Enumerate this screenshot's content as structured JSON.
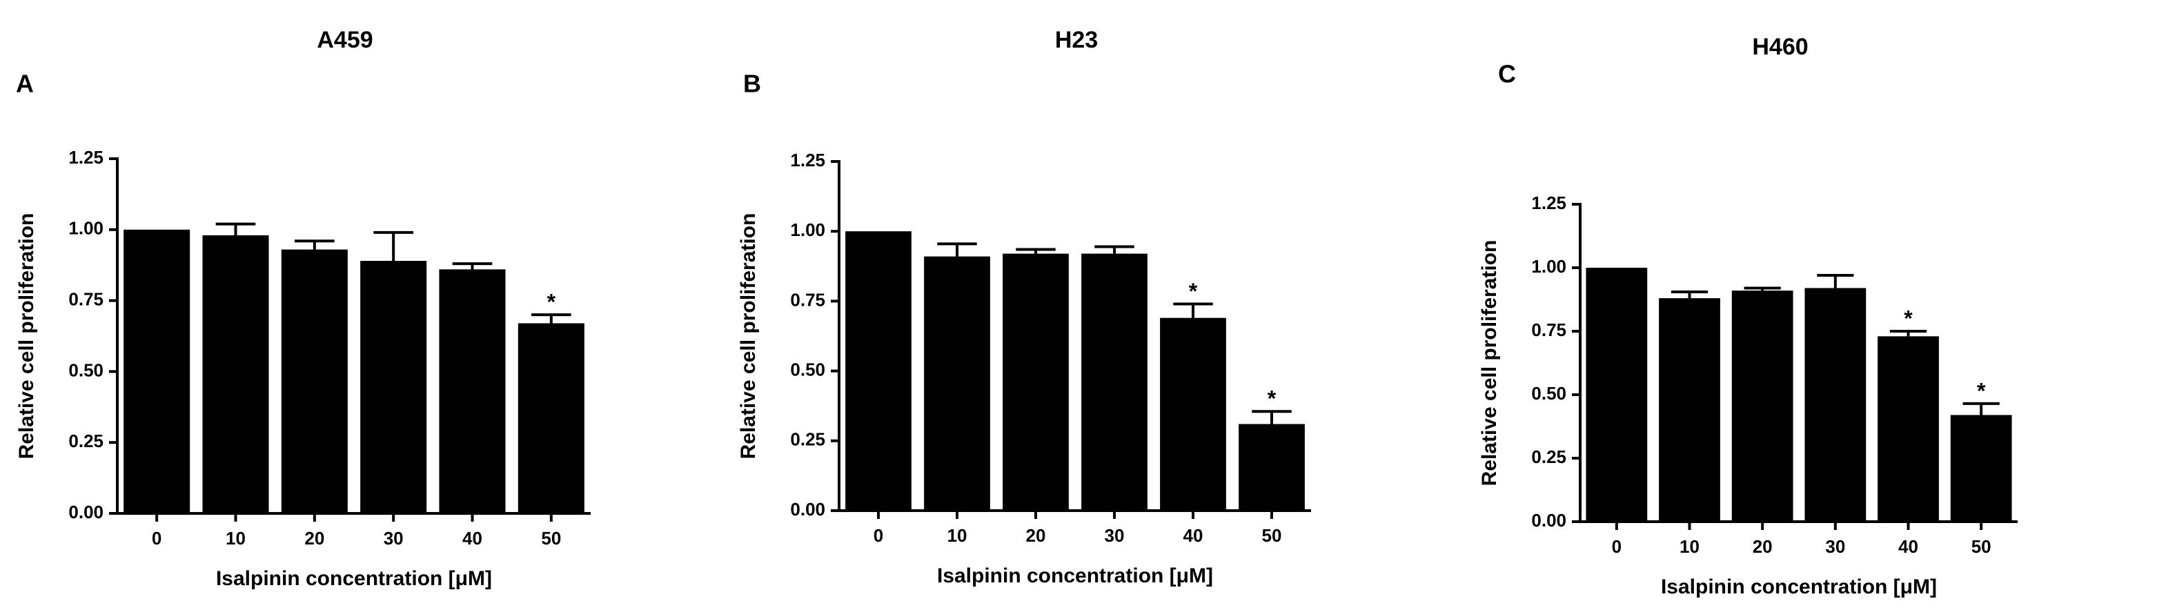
{
  "chart_data": [
    {
      "type": "bar",
      "panel": "A",
      "title": "A459",
      "x_label": "Isalpinin concentration [μM]",
      "y_label": "Relative cell proliferation",
      "categories": [
        "0",
        "10",
        "20",
        "30",
        "40",
        "50"
      ],
      "values": [
        1.0,
        0.98,
        0.93,
        0.89,
        0.86,
        0.67
      ],
      "errors": [
        null,
        0.04,
        0.03,
        0.1,
        0.02,
        0.03
      ],
      "significance": [
        null,
        null,
        null,
        null,
        null,
        "*"
      ],
      "color": "#000000",
      "ylim": [
        0,
        1.25
      ],
      "yticks": [
        {
          "value": 0,
          "label": "0.00"
        },
        {
          "value": 0.25,
          "label": "0.25"
        },
        {
          "value": 0.5,
          "label": "0.50"
        },
        {
          "value": 0.75,
          "label": "0.75"
        },
        {
          "value": 1,
          "label": "1.00"
        },
        {
          "value": 1.25,
          "label": "1.25"
        }
      ]
    },
    {
      "type": "bar",
      "panel": "B",
      "title": "H23",
      "x_label": "Isalpinin concentration [μM]",
      "y_label": "Relative cell proliferation",
      "categories": [
        "0",
        "10",
        "20",
        "30",
        "40",
        "50"
      ],
      "values": [
        1.0,
        0.91,
        0.92,
        0.92,
        0.69,
        0.31
      ],
      "errors": [
        null,
        0.045,
        0.015,
        0.025,
        0.05,
        0.045
      ],
      "significance": [
        null,
        null,
        null,
        null,
        "*",
        "*"
      ],
      "color": "#000000",
      "ylim": [
        0,
        1.25
      ],
      "yticks": [
        {
          "value": 0,
          "label": "0.00"
        },
        {
          "value": 0.25,
          "label": "0.25"
        },
        {
          "value": 0.5,
          "label": "0.50"
        },
        {
          "value": 0.75,
          "label": "0.75"
        },
        {
          "value": 1,
          "label": "1.00"
        },
        {
          "value": 1.25,
          "label": "1.25"
        }
      ]
    },
    {
      "type": "bar",
      "panel": "C",
      "title": "H460",
      "x_label": "Isalpinin concentration [μM]",
      "y_label": "Relative cell proliferation",
      "categories": [
        "0",
        "10",
        "20",
        "30",
        "40",
        "50"
      ],
      "values": [
        1.0,
        0.88,
        0.91,
        0.92,
        0.73,
        0.42
      ],
      "errors": [
        null,
        0.025,
        0.01,
        0.05,
        0.02,
        0.045
      ],
      "significance": [
        null,
        null,
        null,
        null,
        "*",
        "*"
      ],
      "color": "#000000",
      "ylim": [
        0,
        1.25
      ],
      "yticks": [
        {
          "value": 0,
          "label": "0.00"
        },
        {
          "value": 0.25,
          "label": "0.25"
        },
        {
          "value": 0.5,
          "label": "0.50"
        },
        {
          "value": 0.75,
          "label": "0.75"
        },
        {
          "value": 1,
          "label": "1.00"
        },
        {
          "value": 1.25,
          "label": "1.25"
        }
      ]
    }
  ]
}
